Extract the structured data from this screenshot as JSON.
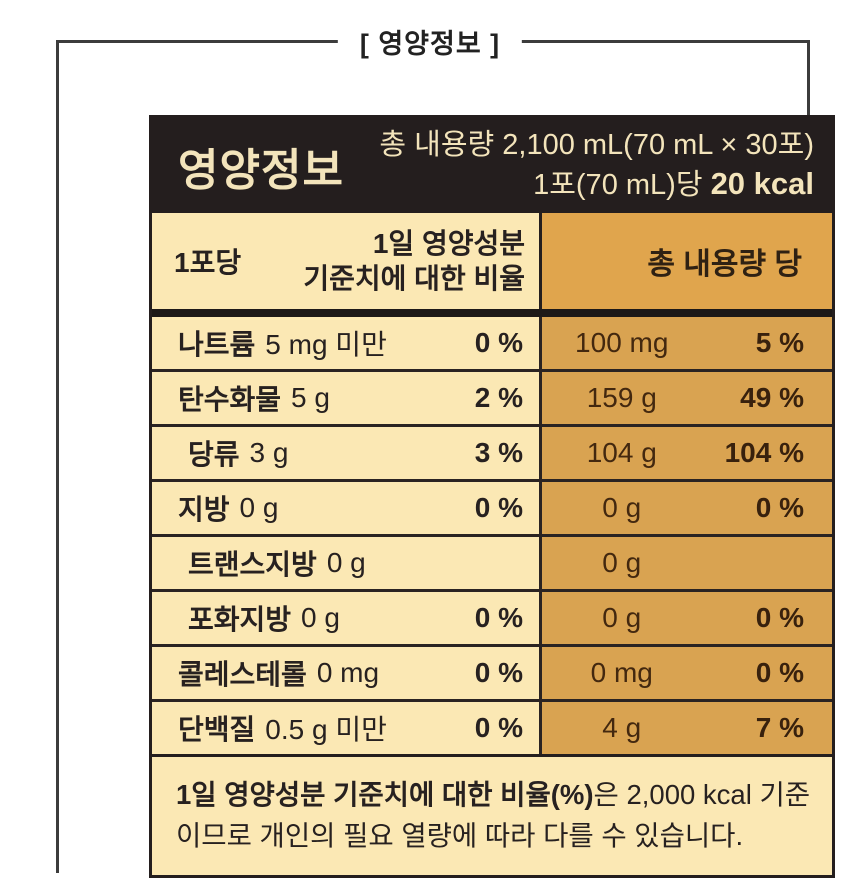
{
  "page_title": "[ 영양정보 ]",
  "panel_header": {
    "title": "영양정보",
    "total_volume_line": "총 내용량 2,100 mL(70 mL × 30포)",
    "per_serving_prefix": "1포(70 mL)당 ",
    "per_serving_kcal": "20 kcal"
  },
  "column_header": {
    "per_serving": "1포당",
    "daily_value_line1": "1일 영양성분",
    "daily_value_line2": "기준치에 대한 비율",
    "per_total": "총 내용량 당"
  },
  "table": {
    "rows": [
      {
        "name": "나트륨",
        "amount": "5 mg 미만",
        "dv": "0 %",
        "total_amount": "100 mg",
        "total_dv": "5 %",
        "indent": false
      },
      {
        "name": "탄수화물",
        "amount": "5 g",
        "dv": "2 %",
        "total_amount": "159 g",
        "total_dv": "49 %",
        "indent": false
      },
      {
        "name": "당류",
        "amount": "3 g",
        "dv": "3 %",
        "total_amount": "104 g",
        "total_dv": "104 %",
        "indent": true
      },
      {
        "name": "지방",
        "amount": "0 g",
        "dv": "0 %",
        "total_amount": "0 g",
        "total_dv": "0 %",
        "indent": false
      },
      {
        "name": "트랜스지방",
        "amount": "0 g",
        "dv": "",
        "total_amount": "0 g",
        "total_dv": "",
        "indent": true
      },
      {
        "name": "포화지방",
        "amount": "0 g",
        "dv": "0 %",
        "total_amount": "0 g",
        "total_dv": "0 %",
        "indent": true
      },
      {
        "name": "콜레스테롤",
        "amount": "0 mg",
        "dv": "0 %",
        "total_amount": "0 mg",
        "total_dv": "0 %",
        "indent": false
      },
      {
        "name": "단백질",
        "amount": "0.5 g 미만",
        "dv": "0 %",
        "total_amount": "4 g",
        "total_dv": "7 %",
        "indent": false
      }
    ]
  },
  "footnote": {
    "bold": "1일 영양성분 기준치에 대한 비율(%)",
    "rest": "은 2,000 kcal 기준 이므로 개인의 필요 열량에 따라 다를 수 있습니다."
  },
  "colors": {
    "header_bg": "#241e1e",
    "header_text": "#f3e4bb",
    "left_cell_bg": "#fbe8b4",
    "right_header_bg": "#e0a54d",
    "right_cell_bg": "#d9a351",
    "right_cell_text": "#43280f",
    "border": "#2a2322",
    "frame": "#3c3c3c"
  }
}
